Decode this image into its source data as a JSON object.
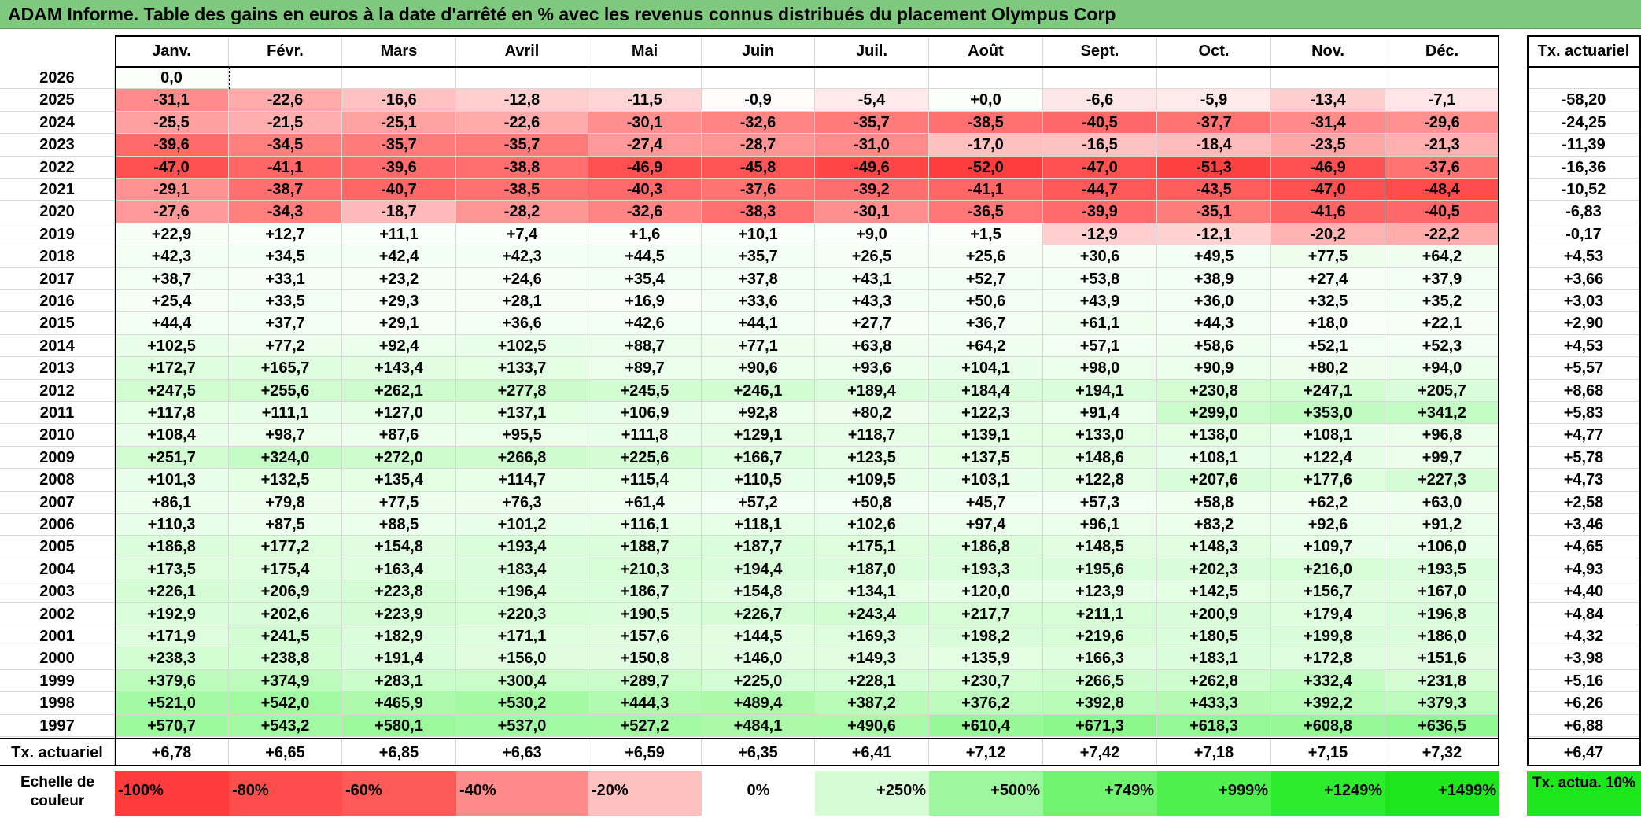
{
  "title": "ADAM Informe. Table des gains en euros à la date d'arrêté en % avec les revenus connus distribués du placement Olympus Corp",
  "months": [
    "Janv.",
    "Févr.",
    "Mars",
    "Avril",
    "Mai",
    "Juin",
    "Juil.",
    "Août",
    "Sept.",
    "Oct.",
    "Nov.",
    "Déc."
  ],
  "tx_header": "Tx. actuariel",
  "rows": [
    {
      "year": "2026",
      "values": [
        "0,0",
        "",
        "",
        "",
        "",
        "",
        "",
        "",
        "",
        "",
        "",
        ""
      ],
      "tx": ""
    },
    {
      "year": "2025",
      "values": [
        "-31,1",
        "-22,6",
        "-16,6",
        "-12,8",
        "-11,5",
        "-0,9",
        "-5,4",
        "+0,0",
        "-6,6",
        "-5,9",
        "-13,4",
        "-7,1"
      ],
      "tx": "-58,20"
    },
    {
      "year": "2024",
      "values": [
        "-25,5",
        "-21,5",
        "-25,1",
        "-22,6",
        "-30,1",
        "-32,6",
        "-35,7",
        "-38,5",
        "-40,5",
        "-37,7",
        "-31,4",
        "-29,6"
      ],
      "tx": "-24,25"
    },
    {
      "year": "2023",
      "values": [
        "-39,6",
        "-34,5",
        "-35,7",
        "-35,7",
        "-27,4",
        "-28,7",
        "-31,0",
        "-17,0",
        "-16,5",
        "-18,4",
        "-23,5",
        "-21,3"
      ],
      "tx": "-11,39"
    },
    {
      "year": "2022",
      "values": [
        "-47,0",
        "-41,1",
        "-39,6",
        "-38,8",
        "-46,9",
        "-45,8",
        "-49,6",
        "-52,0",
        "-47,0",
        "-51,3",
        "-46,9",
        "-37,6"
      ],
      "tx": "-16,36"
    },
    {
      "year": "2021",
      "values": [
        "-29,1",
        "-38,7",
        "-40,7",
        "-38,5",
        "-40,3",
        "-37,6",
        "-39,2",
        "-41,1",
        "-44,7",
        "-43,5",
        "-47,0",
        "-48,4"
      ],
      "tx": "-10,52"
    },
    {
      "year": "2020",
      "values": [
        "-27,6",
        "-34,3",
        "-18,7",
        "-28,2",
        "-32,6",
        "-38,3",
        "-30,1",
        "-36,5",
        "-39,9",
        "-35,1",
        "-41,6",
        "-40,5"
      ],
      "tx": "-6,83"
    },
    {
      "year": "2019",
      "values": [
        "+22,9",
        "+12,7",
        "+11,1",
        "+7,4",
        "+1,6",
        "+10,1",
        "+9,0",
        "+1,5",
        "-12,9",
        "-12,1",
        "-20,2",
        "-22,2"
      ],
      "tx": "-0,17"
    },
    {
      "year": "2018",
      "values": [
        "+42,3",
        "+34,5",
        "+42,4",
        "+42,3",
        "+44,5",
        "+35,7",
        "+26,5",
        "+25,6",
        "+30,6",
        "+49,5",
        "+77,5",
        "+64,2"
      ],
      "tx": "+4,53"
    },
    {
      "year": "2017",
      "values": [
        "+38,7",
        "+33,1",
        "+23,2",
        "+24,6",
        "+35,4",
        "+37,8",
        "+43,1",
        "+52,7",
        "+53,8",
        "+38,9",
        "+27,4",
        "+37,9"
      ],
      "tx": "+3,66"
    },
    {
      "year": "2016",
      "values": [
        "+25,4",
        "+33,5",
        "+29,3",
        "+28,1",
        "+16,9",
        "+33,6",
        "+43,3",
        "+50,6",
        "+43,9",
        "+36,0",
        "+32,5",
        "+35,2"
      ],
      "tx": "+3,03"
    },
    {
      "year": "2015",
      "values": [
        "+44,4",
        "+37,7",
        "+29,1",
        "+36,6",
        "+42,6",
        "+44,1",
        "+27,7",
        "+36,7",
        "+61,1",
        "+44,3",
        "+18,0",
        "+22,1"
      ],
      "tx": "+2,90"
    },
    {
      "year": "2014",
      "values": [
        "+102,5",
        "+77,2",
        "+92,4",
        "+102,5",
        "+88,7",
        "+77,1",
        "+63,8",
        "+64,2",
        "+57,1",
        "+58,6",
        "+52,1",
        "+52,3"
      ],
      "tx": "+4,53"
    },
    {
      "year": "2013",
      "values": [
        "+172,7",
        "+165,7",
        "+143,4",
        "+133,7",
        "+89,7",
        "+90,6",
        "+93,6",
        "+104,1",
        "+98,0",
        "+90,9",
        "+80,2",
        "+94,0"
      ],
      "tx": "+5,57"
    },
    {
      "year": "2012",
      "values": [
        "+247,5",
        "+255,6",
        "+262,1",
        "+277,8",
        "+245,5",
        "+246,1",
        "+189,4",
        "+184,4",
        "+194,1",
        "+230,8",
        "+247,1",
        "+205,7"
      ],
      "tx": "+8,68"
    },
    {
      "year": "2011",
      "values": [
        "+117,8",
        "+111,1",
        "+127,0",
        "+137,1",
        "+106,9",
        "+92,8",
        "+80,2",
        "+122,3",
        "+91,4",
        "+299,0",
        "+353,0",
        "+341,2"
      ],
      "tx": "+5,83"
    },
    {
      "year": "2010",
      "values": [
        "+108,4",
        "+98,7",
        "+87,6",
        "+95,5",
        "+111,8",
        "+129,1",
        "+118,7",
        "+139,1",
        "+133,0",
        "+138,0",
        "+108,1",
        "+96,8"
      ],
      "tx": "+4,77"
    },
    {
      "year": "2009",
      "values": [
        "+251,7",
        "+324,0",
        "+272,0",
        "+266,8",
        "+225,6",
        "+166,7",
        "+123,5",
        "+137,5",
        "+148,6",
        "+108,1",
        "+122,4",
        "+99,7"
      ],
      "tx": "+5,78"
    },
    {
      "year": "2008",
      "values": [
        "+101,3",
        "+132,5",
        "+135,4",
        "+114,7",
        "+115,4",
        "+110,5",
        "+109,5",
        "+103,1",
        "+122,8",
        "+207,6",
        "+177,6",
        "+227,3"
      ],
      "tx": "+4,73"
    },
    {
      "year": "2007",
      "values": [
        "+86,1",
        "+79,8",
        "+77,5",
        "+76,3",
        "+61,4",
        "+57,2",
        "+50,8",
        "+45,7",
        "+57,3",
        "+58,8",
        "+62,2",
        "+63,0"
      ],
      "tx": "+2,58"
    },
    {
      "year": "2006",
      "values": [
        "+110,3",
        "+87,5",
        "+88,5",
        "+101,2",
        "+116,1",
        "+118,1",
        "+102,6",
        "+97,4",
        "+96,1",
        "+83,2",
        "+92,6",
        "+91,2"
      ],
      "tx": "+3,46"
    },
    {
      "year": "2005",
      "values": [
        "+186,8",
        "+177,2",
        "+154,8",
        "+193,4",
        "+188,7",
        "+187,7",
        "+175,1",
        "+186,8",
        "+148,5",
        "+148,3",
        "+109,7",
        "+106,0"
      ],
      "tx": "+4,65"
    },
    {
      "year": "2004",
      "values": [
        "+173,5",
        "+175,4",
        "+163,4",
        "+183,4",
        "+210,3",
        "+194,4",
        "+187,0",
        "+193,3",
        "+195,6",
        "+202,3",
        "+216,0",
        "+193,5"
      ],
      "tx": "+4,93"
    },
    {
      "year": "2003",
      "values": [
        "+226,1",
        "+206,9",
        "+223,8",
        "+196,4",
        "+186,7",
        "+154,8",
        "+134,1",
        "+120,0",
        "+123,9",
        "+142,5",
        "+156,7",
        "+167,0"
      ],
      "tx": "+4,40"
    },
    {
      "year": "2002",
      "values": [
        "+192,9",
        "+202,6",
        "+223,9",
        "+220,3",
        "+190,5",
        "+226,7",
        "+243,4",
        "+217,7",
        "+211,1",
        "+200,9",
        "+179,4",
        "+196,8"
      ],
      "tx": "+4,84"
    },
    {
      "year": "2001",
      "values": [
        "+171,9",
        "+241,5",
        "+182,9",
        "+171,1",
        "+157,6",
        "+144,5",
        "+169,3",
        "+198,2",
        "+219,6",
        "+180,5",
        "+199,8",
        "+186,0"
      ],
      "tx": "+4,32"
    },
    {
      "year": "2000",
      "values": [
        "+238,3",
        "+238,8",
        "+191,4",
        "+156,0",
        "+150,8",
        "+146,0",
        "+149,3",
        "+135,9",
        "+166,3",
        "+183,1",
        "+172,8",
        "+151,6"
      ],
      "tx": "+3,98"
    },
    {
      "year": "1999",
      "values": [
        "+379,6",
        "+374,9",
        "+283,1",
        "+300,4",
        "+289,7",
        "+225,0",
        "+228,1",
        "+230,7",
        "+266,5",
        "+262,8",
        "+332,4",
        "+231,8"
      ],
      "tx": "+5,16"
    },
    {
      "year": "1998",
      "values": [
        "+521,0",
        "+542,0",
        "+465,9",
        "+530,2",
        "+444,3",
        "+489,4",
        "+387,2",
        "+376,2",
        "+392,8",
        "+433,3",
        "+392,2",
        "+379,3"
      ],
      "tx": "+6,26"
    },
    {
      "year": "1997",
      "values": [
        "+570,7",
        "+543,2",
        "+580,1",
        "+537,0",
        "+527,2",
        "+484,1",
        "+490,6",
        "+610,4",
        "+671,3",
        "+618,3",
        "+608,8",
        "+636,5"
      ],
      "tx": "+6,88"
    }
  ],
  "footer": {
    "label": "Tx. actuariel",
    "values": [
      "+6,78",
      "+6,65",
      "+6,85",
      "+6,63",
      "+6,59",
      "+6,35",
      "+6,41",
      "+7,12",
      "+7,42",
      "+7,18",
      "+7,15",
      "+7,32"
    ],
    "tx": "+6,47"
  },
  "legend": {
    "label": "Echelle de couleur",
    "items": [
      {
        "text": "-100%",
        "color": "#ff3b3b"
      },
      {
        "text": "-80%",
        "color": "#ff4c4c"
      },
      {
        "text": "-60%",
        "color": "#ff5a5a"
      },
      {
        "text": "-40%",
        "color": "#ff8a8a"
      },
      {
        "text": "-20%",
        "color": "#ffc0c0"
      },
      {
        "text": "0%",
        "color": "#ffffff"
      },
      {
        "text": "+250%",
        "color": "#d6fcd6"
      },
      {
        "text": "+500%",
        "color": "#9ef79e"
      },
      {
        "text": "+749%",
        "color": "#6ef46e"
      },
      {
        "text": "+999%",
        "color": "#4df04d"
      },
      {
        "text": "+1249%",
        "color": "#2deb2d"
      },
      {
        "text": "+1499%",
        "color": "#1de61d"
      }
    ],
    "note": "Tx. actua. 10%",
    "note_color": "#1de61d"
  }
}
